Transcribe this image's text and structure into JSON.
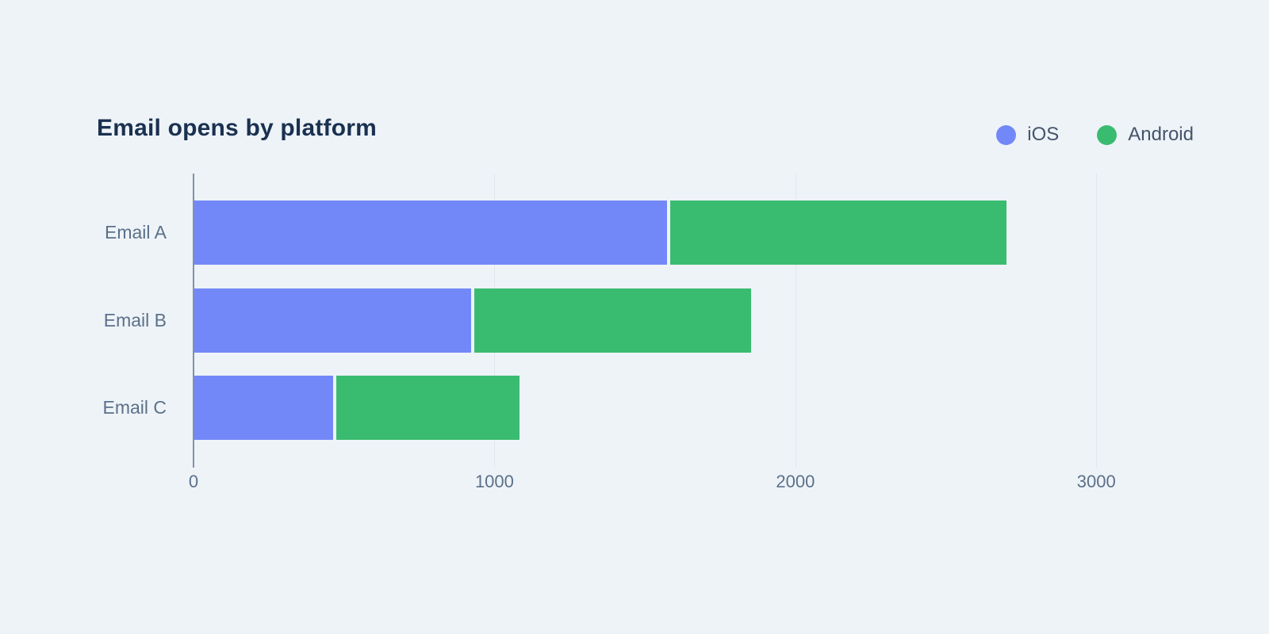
{
  "chart_data": {
    "type": "bar",
    "orientation": "horizontal",
    "stacked": true,
    "title": "Email opens by platform",
    "categories": [
      "Email A",
      "Email B",
      "Email C"
    ],
    "series": [
      {
        "name": "iOS",
        "color": "#7388f8",
        "values": [
          1570,
          920,
          460
        ]
      },
      {
        "name": "Android",
        "color": "#3abc70",
        "values": [
          1130,
          930,
          620
        ]
      }
    ],
    "x_ticks": [
      "0",
      "1000",
      "2000",
      "3000"
    ],
    "x_tick_values": [
      0,
      1000,
      2000,
      3000
    ],
    "xlim": [
      0,
      3200
    ],
    "grid": true,
    "legend_position": "top-right",
    "style": {
      "background": "#eef3f8",
      "title_color": "#1a3150",
      "legend_text_color": "#44546b",
      "axis_label_color": "#5b7189",
      "axis_line_color": "#7e93a8",
      "gridline_color": "#e0e7ef"
    }
  }
}
